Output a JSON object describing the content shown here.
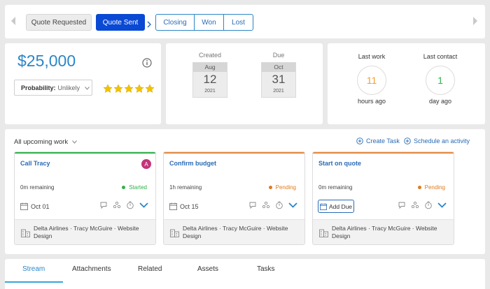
{
  "pipeline": {
    "stages": [
      {
        "label": "Quote Requested",
        "state": "done"
      },
      {
        "label": "Quote Sent",
        "state": "current"
      },
      {
        "label": "Closing",
        "state": "next"
      },
      {
        "label": "Won",
        "state": "next"
      },
      {
        "label": "Lost",
        "state": "next"
      }
    ],
    "prev_icon": "chevron-left-icon",
    "next_icon": "chevron-right-icon"
  },
  "deal": {
    "amount": "$25,000",
    "info_icon": "info-icon",
    "probability_label": "Probability:",
    "probability_value": "Unlikely",
    "stars": 5,
    "star_color": "#f2c200"
  },
  "dates": {
    "created": {
      "label": "Created",
      "month": "Aug",
      "day": "12",
      "year": "2021"
    },
    "due": {
      "label": "Due",
      "month": "Oct",
      "day": "31",
      "year": "2021"
    }
  },
  "activity": {
    "last_work": {
      "label": "Last work",
      "value": "11",
      "unit": "hours ago",
      "color": "#f0a030"
    },
    "last_contact": {
      "label": "Last contact",
      "value": "1",
      "unit": "day ago",
      "color": "#2fb24a"
    }
  },
  "work": {
    "filter_label": "All upcoming work",
    "create_task": "Create Task",
    "schedule_activity": "Schedule an activity",
    "tasks": [
      {
        "title": "Call Tracy",
        "remaining": "0m remaining",
        "status": "Started",
        "status_color": "#2fb24a",
        "bar_color": "#2fb24a",
        "date": "Oct 01",
        "avatar": "A",
        "avatar_color": "#c2357a",
        "related": "Delta Airlines · Tracy McGuire · Website Design"
      },
      {
        "title": "Confirm budget",
        "remaining": "1h remaining",
        "status": "Pending",
        "status_color": "#e07b1c",
        "bar_color": "#e8873a",
        "date": "Oct 15",
        "related": "Delta Airlines · Tracy McGuire · Website Design"
      },
      {
        "title": "Start on quote",
        "remaining": "0m remaining",
        "status": "Pending",
        "status_color": "#e07b1c",
        "bar_color": "#e8873a",
        "add_due": "Add Due",
        "related": "Delta Airlines · Tracy McGuire · Website Design"
      }
    ]
  },
  "tabs": [
    {
      "label": "Stream",
      "active": true
    },
    {
      "label": "Attachments"
    },
    {
      "label": "Related"
    },
    {
      "label": "Assets"
    },
    {
      "label": "Tasks"
    }
  ],
  "colors": {
    "accent": "#2a6bb5",
    "primary_button": "#0a49d4",
    "amount": "#2a86c8",
    "active_tab": "#39a5d9"
  }
}
